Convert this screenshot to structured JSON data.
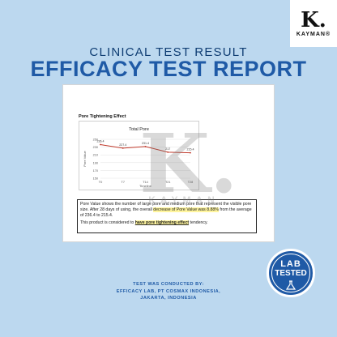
{
  "brand": {
    "mark": "K.",
    "name": "KAYMAN®"
  },
  "header": {
    "subtitle": "CLINICAL TEST RESULT",
    "title": "EFFICACY TEST REPORT"
  },
  "report": {
    "section_title": "Pore Tightening Effect",
    "description": {
      "part1": "Pore Value shows the number of large pore and medium pore that represent the visible pore size. After 28 days of using, the overall ",
      "highlight": "decrease of Pore Value was 8.88%",
      "part2": " from the average of 236.4 to 215.4.",
      "conclusion_pre": "This product is considered to ",
      "conclusion_highlight": "have pore tightening effect",
      "conclusion_post": " tendency."
    }
  },
  "chart_data": {
    "type": "line",
    "title": "Total Pore",
    "xlabel": "Timeline",
    "ylabel": "Pore Value",
    "categories": [
      "T0",
      "T7",
      "T14",
      "T21",
      "T28"
    ],
    "yticks": [
      150,
      170,
      190,
      210,
      230,
      250
    ],
    "ylim": [
      150,
      250
    ],
    "series": [
      {
        "values": [
          236.4,
          227.4,
          231.4,
          217.0,
          215.4
        ],
        "color": "#c0392b"
      }
    ],
    "data_labels": [
      "236.4",
      "227.4",
      "231.4",
      "217",
      "215.4"
    ],
    "grid": true
  },
  "watermark": {
    "mark": "K.",
    "name": "KAYMAN"
  },
  "footer": {
    "line1": "TEST WAS CONDUCTED BY:",
    "line2": "EFFICACY LAB, PT COSMAX INDONESIA,",
    "line3": "JAKARTA, INDONESIA"
  },
  "badge": {
    "line1": "LAB",
    "line2": "TESTED",
    "icon": "flask-icon"
  }
}
